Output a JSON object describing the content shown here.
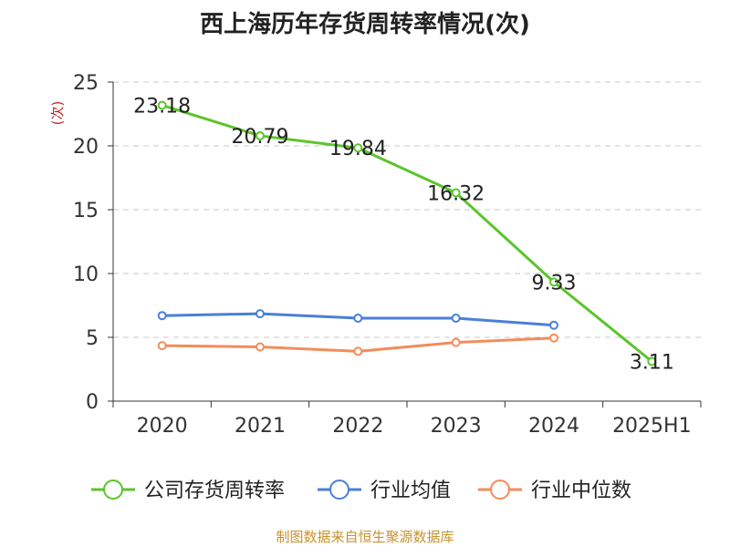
{
  "chart_data": {
    "type": "line",
    "title": "西上海历年存货周转率情况(次)",
    "ylabel": "(次)",
    "xlabel": "",
    "categories": [
      "2020",
      "2021",
      "2022",
      "2023",
      "2024",
      "2025H1"
    ],
    "ylim": [
      0,
      25
    ],
    "yticks": [
      0,
      5,
      10,
      15,
      20,
      25
    ],
    "grid": true,
    "legend_position": "bottom",
    "series": [
      {
        "name": "公司存货周转率",
        "color": "#5cc42b",
        "values": [
          23.18,
          20.79,
          19.84,
          16.32,
          9.33,
          3.11
        ],
        "labels": [
          "23.18",
          "20.79",
          "19.84",
          "16.32",
          "9.33",
          "3.11"
        ]
      },
      {
        "name": "行业均值",
        "color": "#4a7fd8",
        "values": [
          6.7,
          6.85,
          6.5,
          6.5,
          5.95,
          null
        ]
      },
      {
        "name": "行业中位数",
        "color": "#f38c5a",
        "values": [
          4.35,
          4.25,
          3.9,
          4.6,
          4.95,
          null
        ]
      }
    ]
  },
  "source": "制图数据来自恒生聚源数据库"
}
